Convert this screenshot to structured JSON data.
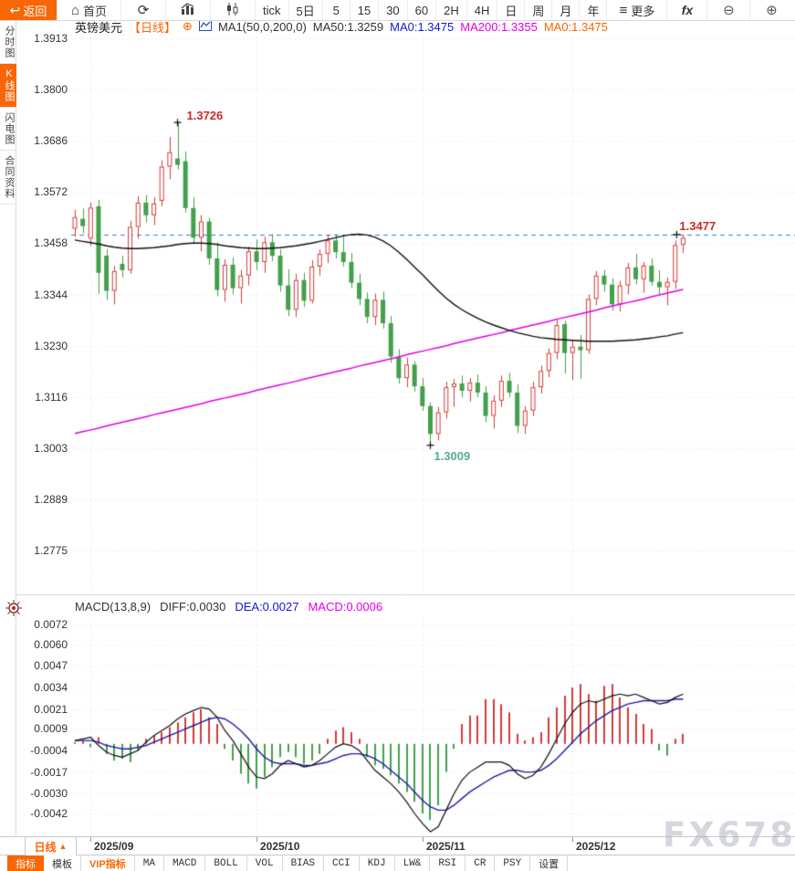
{
  "top_toolbar": {
    "back_label": "返回",
    "back_arrow": "↩",
    "home_label": "首页",
    "home_icon": "⌂",
    "refresh_icon": "⟳",
    "timeframes": [
      "tick",
      "5日",
      "5",
      "15",
      "30",
      "60",
      "2H",
      "4H",
      "日",
      "周",
      "月",
      "年"
    ],
    "more_icon": "≡",
    "more_label": "更多",
    "fx_label": "fx",
    "zoom_out": "⊖",
    "zoom_in": "⊕"
  },
  "sidebar": {
    "items": [
      {
        "label": "分时图",
        "active": false
      },
      {
        "label": "K线图",
        "active": true
      },
      {
        "label": "闪电图",
        "active": false
      },
      {
        "label": "合同资料",
        "active": false
      }
    ]
  },
  "chart_header": {
    "symbol": "英镑美元",
    "period_tag": "【日线】",
    "plus_icon": "⊕",
    "ma_setting": "MA1(50,0,200,0)",
    "ma50_label": "MA50:1.3259",
    "ma0_blue_label": "MA0:1.3475",
    "ma200_label": "MA200:1.3355",
    "ma0_orange_label": "MA0:1.3475"
  },
  "macd_header": {
    "setting": "MACD(13,8,9)",
    "diff_label": "DIFF:0.0030",
    "dea_label": "DEA:0.0027",
    "macd_label": "MACD:0.0006"
  },
  "annotations": {
    "high": "1.3726",
    "low": "1.3009",
    "last": "1.3477"
  },
  "x_axis": {
    "period_label": "日线",
    "period_arrow": "▲"
  },
  "bottom_toolbar": {
    "items": [
      {
        "label": "指标",
        "style": "orange-bg",
        "cn": true
      },
      {
        "label": "模板",
        "style": "",
        "cn": true
      },
      {
        "label": "VIP指标",
        "style": "orange-text",
        "cn": true
      },
      {
        "label": "MA",
        "style": "",
        "cn": false
      },
      {
        "label": "MACD",
        "style": "",
        "cn": false
      },
      {
        "label": "BOLL",
        "style": "",
        "cn": false
      },
      {
        "label": "VOL",
        "style": "",
        "cn": false
      },
      {
        "label": "BIAS",
        "style": "",
        "cn": false
      },
      {
        "label": "CCI",
        "style": "",
        "cn": false
      },
      {
        "label": "KDJ",
        "style": "",
        "cn": false
      },
      {
        "label": "LW&",
        "style": "",
        "cn": false
      },
      {
        "label": "RSI",
        "style": "",
        "cn": false
      },
      {
        "label": "CR",
        "style": "",
        "cn": false
      },
      {
        "label": "PSY",
        "style": "",
        "cn": false
      },
      {
        "label": "设置",
        "style": "",
        "cn": true
      }
    ]
  },
  "watermark": "FX678",
  "colors": {
    "up": "#d23c37",
    "down": "#43a04c",
    "ma50": "#111111",
    "ma200": "#e400e4",
    "dea": "#1c1ca8",
    "diff": "#111111",
    "dashed_line": "#2b7fd4",
    "grid": "#e2e2e2",
    "accent": "#f86606",
    "ann_high": "#cc2a2a",
    "ann_low": "#4fae93",
    "ann_last": "#cc2a2a"
  },
  "chart_data": {
    "type": "candlestick+macd",
    "title": "英镑美元 日线 (GBP/USD Daily)",
    "main": {
      "y_ticks": [
        "1.3913",
        "1.3800",
        "1.3686",
        "1.3572",
        "1.3458",
        "1.3344",
        "1.3230",
        "1.3116",
        "1.3003",
        "1.2889",
        "1.2775"
      ],
      "axis": {
        "max": 1.3913,
        "min": 1.2775
      },
      "dashed_price": 1.3477,
      "high_marker": {
        "index": 13,
        "price": 1.3726
      },
      "low_marker": {
        "index": 45,
        "price": 1.3009
      },
      "last_marker": {
        "index": 77,
        "price": 1.3477
      },
      "candles": [
        [
          1.349,
          1.3532,
          1.3472,
          1.3516
        ],
        [
          1.3512,
          1.3535,
          1.348,
          1.3496
        ],
        [
          1.3468,
          1.3548,
          1.3452,
          1.3537
        ],
        [
          1.354,
          1.3554,
          1.3345,
          1.3392
        ],
        [
          1.343,
          1.3445,
          1.3332,
          1.3352
        ],
        [
          1.3352,
          1.3408,
          1.3322,
          1.3396
        ],
        [
          1.3412,
          1.343,
          1.3382,
          1.3398
        ],
        [
          1.3398,
          1.3508,
          1.339,
          1.3494
        ],
        [
          1.3494,
          1.3562,
          1.3468,
          1.3548
        ],
        [
          1.3548,
          1.3565,
          1.3504,
          1.352
        ],
        [
          1.352,
          1.356,
          1.3498,
          1.3546
        ],
        [
          1.3552,
          1.3642,
          1.354,
          1.3628
        ],
        [
          1.3628,
          1.3694,
          1.36,
          1.366
        ],
        [
          1.3646,
          1.3726,
          1.3622,
          1.3632
        ],
        [
          1.364,
          1.3662,
          1.3526,
          1.3536
        ],
        [
          1.3536,
          1.356,
          1.3456,
          1.347
        ],
        [
          1.347,
          1.352,
          1.344,
          1.3506
        ],
        [
          1.3506,
          1.3514,
          1.341,
          1.3424
        ],
        [
          1.3424,
          1.346,
          1.334,
          1.3354
        ],
        [
          1.3354,
          1.3422,
          1.3328,
          1.341
        ],
        [
          1.341,
          1.3426,
          1.3344,
          1.3358
        ],
        [
          1.3358,
          1.3398,
          1.3324,
          1.3386
        ],
        [
          1.3386,
          1.345,
          1.3364,
          1.344
        ],
        [
          1.344,
          1.3466,
          1.3398,
          1.3416
        ],
        [
          1.3416,
          1.3472,
          1.3392,
          1.346
        ],
        [
          1.346,
          1.3478,
          1.3418,
          1.343
        ],
        [
          1.343,
          1.3444,
          1.335,
          1.3364
        ],
        [
          1.3364,
          1.34,
          1.3296,
          1.331
        ],
        [
          1.331,
          1.339,
          1.3294,
          1.3376
        ],
        [
          1.3376,
          1.3392,
          1.3316,
          1.333
        ],
        [
          1.333,
          1.342,
          1.3324,
          1.3406
        ],
        [
          1.3406,
          1.3444,
          1.3386,
          1.3434
        ],
        [
          1.3434,
          1.3476,
          1.3414,
          1.3464
        ],
        [
          1.3464,
          1.3478,
          1.3424,
          1.3438
        ],
        [
          1.3438,
          1.3472,
          1.3406,
          1.3416
        ],
        [
          1.3416,
          1.3436,
          1.3358,
          1.337
        ],
        [
          1.337,
          1.339,
          1.332,
          1.3334
        ],
        [
          1.3334,
          1.3348,
          1.328,
          1.3294
        ],
        [
          1.3294,
          1.3346,
          1.3276,
          1.3332
        ],
        [
          1.3332,
          1.335,
          1.3268,
          1.328
        ],
        [
          1.328,
          1.3296,
          1.3192,
          1.3206
        ],
        [
          1.3206,
          1.3222,
          1.3146,
          1.3158
        ],
        [
          1.3158,
          1.3204,
          1.3138,
          1.3188
        ],
        [
          1.3188,
          1.3196,
          1.3128,
          1.314
        ],
        [
          1.314,
          1.3158,
          1.3086,
          1.3096
        ],
        [
          1.3096,
          1.3104,
          1.3009,
          1.3034
        ],
        [
          1.3034,
          1.3094,
          1.302,
          1.3082
        ],
        [
          1.3082,
          1.315,
          1.3068,
          1.3138
        ],
        [
          1.3138,
          1.3156,
          1.3094,
          1.3146
        ],
        [
          1.3146,
          1.3164,
          1.3116,
          1.313
        ],
        [
          1.313,
          1.3158,
          1.3106,
          1.3148
        ],
        [
          1.3148,
          1.3166,
          1.3116,
          1.3126
        ],
        [
          1.3126,
          1.314,
          1.306,
          1.3074
        ],
        [
          1.3074,
          1.312,
          1.3046,
          1.3108
        ],
        [
          1.3108,
          1.3164,
          1.3094,
          1.3152
        ],
        [
          1.3152,
          1.317,
          1.3116,
          1.3126
        ],
        [
          1.3126,
          1.3144,
          1.3036,
          1.3052
        ],
        [
          1.3052,
          1.3096,
          1.3034,
          1.3086
        ],
        [
          1.3086,
          1.315,
          1.3074,
          1.3138
        ],
        [
          1.3138,
          1.3186,
          1.3124,
          1.3174
        ],
        [
          1.3174,
          1.3224,
          1.316,
          1.3214
        ],
        [
          1.3214,
          1.329,
          1.32,
          1.3276
        ],
        [
          1.3278,
          1.3286,
          1.3168,
          1.3214
        ],
        [
          1.3214,
          1.3244,
          1.3154,
          1.3228
        ],
        [
          1.3228,
          1.3254,
          1.3156,
          1.322
        ],
        [
          1.322,
          1.3344,
          1.3212,
          1.3334
        ],
        [
          1.3334,
          1.3396,
          1.332,
          1.3386
        ],
        [
          1.3386,
          1.3398,
          1.335,
          1.3366
        ],
        [
          1.3366,
          1.338,
          1.3308,
          1.3322
        ],
        [
          1.3322,
          1.3374,
          1.3306,
          1.3364
        ],
        [
          1.3364,
          1.3414,
          1.3344,
          1.3404
        ],
        [
          1.3404,
          1.3434,
          1.3366,
          1.3378
        ],
        [
          1.3378,
          1.3416,
          1.3348,
          1.3408
        ],
        [
          1.3408,
          1.3424,
          1.3364,
          1.3372
        ],
        [
          1.3372,
          1.3398,
          1.3344,
          1.336
        ],
        [
          1.336,
          1.3382,
          1.332,
          1.3372
        ],
        [
          1.3372,
          1.3464,
          1.3356,
          1.3454
        ],
        [
          1.3454,
          1.3477,
          1.3436,
          1.347
        ]
      ],
      "ma50": [
        1.3465,
        1.3462,
        1.3459,
        1.3456,
        1.3452,
        1.3449,
        1.3447,
        1.3446,
        1.3446,
        1.3447,
        1.3448,
        1.345,
        1.3452,
        1.3455,
        1.3457,
        1.3458,
        1.3458,
        1.3457,
        1.3455,
        1.3452,
        1.345,
        1.3448,
        1.3447,
        1.3446,
        1.3446,
        1.3447,
        1.3448,
        1.345,
        1.3452,
        1.3455,
        1.3458,
        1.3462,
        1.3466,
        1.347,
        1.3474,
        1.3477,
        1.3478,
        1.3476,
        1.3471,
        1.3463,
        1.3452,
        1.3438,
        1.3422,
        1.3405,
        1.3388,
        1.337,
        1.3352,
        1.3336,
        1.3322,
        1.331,
        1.33,
        1.3291,
        1.3283,
        1.3276,
        1.327,
        1.3264,
        1.3259,
        1.3255,
        1.3251,
        1.3248,
        1.3246,
        1.3244,
        1.3243,
        1.3242,
        1.3241,
        1.324,
        1.324,
        1.324,
        1.324,
        1.3241,
        1.3242,
        1.3243,
        1.3245,
        1.3247,
        1.325,
        1.3252,
        1.3256,
        1.3259
      ],
      "ma200": [
        1.3035,
        1.3039,
        1.3043,
        1.3047,
        1.3052,
        1.3056,
        1.306,
        1.3064,
        1.3068,
        1.3072,
        1.3077,
        1.3081,
        1.3085,
        1.3089,
        1.3093,
        1.3097,
        1.3101,
        1.3106,
        1.311,
        1.3114,
        1.3118,
        1.3122,
        1.3126,
        1.3131,
        1.3135,
        1.3139,
        1.3143,
        1.3147,
        1.3151,
        1.3156,
        1.316,
        1.3164,
        1.3168,
        1.3172,
        1.3176,
        1.318,
        1.3185,
        1.3189,
        1.3193,
        1.3197,
        1.3201,
        1.3205,
        1.321,
        1.3214,
        1.3218,
        1.3222,
        1.3226,
        1.323,
        1.3235,
        1.3239,
        1.3243,
        1.3247,
        1.3251,
        1.3255,
        1.3259,
        1.3264,
        1.3268,
        1.3272,
        1.3276,
        1.328,
        1.3284,
        1.3289,
        1.3293,
        1.3297,
        1.3301,
        1.3305,
        1.3309,
        1.3314,
        1.3318,
        1.3322,
        1.3326,
        1.333,
        1.3334,
        1.3339,
        1.3343,
        1.3347,
        1.3351,
        1.3355
      ]
    },
    "macd": {
      "y_ticks": [
        "0.0072",
        "0.0060",
        "0.0047",
        "0.0034",
        "0.0021",
        "0.0009",
        "-0.0004",
        "-0.0017",
        "-0.0030",
        "-0.0042"
      ],
      "axis": {
        "max": 0.0072,
        "min": -0.0042
      },
      "hist": [
        0.0001,
        0.0002,
        -0.0002,
        0.0004,
        -0.0006,
        -0.001,
        -0.0009,
        -0.0011,
        -0.0004,
        0.0003,
        0.0005,
        0.0007,
        0.001,
        0.0013,
        0.0016,
        0.0019,
        0.0021,
        0.0016,
        0.0012,
        -0.0003,
        -0.001,
        -0.0018,
        -0.0024,
        -0.0027,
        -0.002,
        -0.0014,
        -0.0008,
        -0.0005,
        -0.0008,
        -0.0012,
        -0.001,
        -0.0006,
        0.0003,
        0.0008,
        0.001,
        0.0007,
        0.0003,
        -0.0008,
        -0.0013,
        -0.0015,
        -0.0019,
        -0.0024,
        -0.0029,
        -0.0035,
        -0.0042,
        -0.0046,
        -0.0037,
        -0.0017,
        -0.0003,
        0.0012,
        0.0017,
        0.0017,
        0.0027,
        0.0027,
        0.0024,
        0.0019,
        0.0006,
        0.0002,
        0.0004,
        0.0007,
        0.0016,
        0.0022,
        0.0029,
        0.0034,
        0.0036,
        0.003,
        0.0026,
        0.0035,
        0.0036,
        0.0028,
        0.0022,
        0.0018,
        0.0012,
        0.0009,
        -0.0004,
        -0.0007,
        0.0003,
        0.0006
      ],
      "diff": [
        0.0002,
        0.0003,
        0.0004,
        -0.0001,
        -0.0005,
        -0.0007,
        -0.0008,
        -0.0006,
        -0.0004,
        0.0001,
        0.0005,
        0.0008,
        0.0011,
        0.0015,
        0.0018,
        0.002,
        0.0022,
        0.0021,
        0.0016,
        0.0008,
        0.0002,
        -0.0006,
        -0.0014,
        -0.002,
        -0.0021,
        -0.0018,
        -0.0013,
        -0.001,
        -0.0012,
        -0.0014,
        -0.0013,
        -0.001,
        -0.0006,
        -0.0002,
        0.0,
        -0.0001,
        -0.0004,
        -0.001,
        -0.0016,
        -0.002,
        -0.0024,
        -0.0029,
        -0.0035,
        -0.0042,
        -0.0048,
        -0.0053,
        -0.005,
        -0.004,
        -0.003,
        -0.0022,
        -0.0017,
        -0.0014,
        -0.0011,
        -0.0011,
        -0.0011,
        -0.0013,
        -0.0018,
        -0.0021,
        -0.0019,
        -0.0014,
        -0.0006,
        0.0003,
        0.0012,
        0.0019,
        0.0024,
        0.0026,
        0.0025,
        0.0027,
        0.0029,
        0.003,
        0.0029,
        0.003,
        0.0028,
        0.0026,
        0.0024,
        0.0025,
        0.0028,
        0.003
      ],
      "dea": [
        0.0002,
        0.0002,
        0.0002,
        0.0001,
        -0.0001,
        -0.0002,
        -0.0003,
        -0.0003,
        -0.0002,
        -0.0001,
        0.0001,
        0.0003,
        0.0005,
        0.0007,
        0.0009,
        0.0011,
        0.0013,
        0.0015,
        0.0016,
        0.0015,
        0.0012,
        0.0008,
        0.0003,
        -0.0003,
        -0.0008,
        -0.0011,
        -0.0012,
        -0.0012,
        -0.0012,
        -0.0013,
        -0.0013,
        -0.0012,
        -0.0011,
        -0.0009,
        -0.0007,
        -0.0006,
        -0.0006,
        -0.0007,
        -0.0009,
        -0.0012,
        -0.0016,
        -0.002,
        -0.0024,
        -0.0029,
        -0.0034,
        -0.0038,
        -0.004,
        -0.004,
        -0.0037,
        -0.0033,
        -0.0029,
        -0.0026,
        -0.0023,
        -0.002,
        -0.0018,
        -0.0016,
        -0.0016,
        -0.0017,
        -0.0017,
        -0.0016,
        -0.0013,
        -0.0009,
        -0.0004,
        0.0001,
        0.0006,
        0.001,
        0.0014,
        0.0017,
        0.002,
        0.0022,
        0.0024,
        0.0025,
        0.0026,
        0.0026,
        0.0026,
        0.0026,
        0.0027,
        0.0027
      ]
    },
    "x_axis_months": [
      {
        "label": "2025/09",
        "index": 2
      },
      {
        "label": "2025/10",
        "index": 23
      },
      {
        "label": "2025/11",
        "index": 44
      },
      {
        "label": "2025/12",
        "index": 63
      }
    ]
  }
}
